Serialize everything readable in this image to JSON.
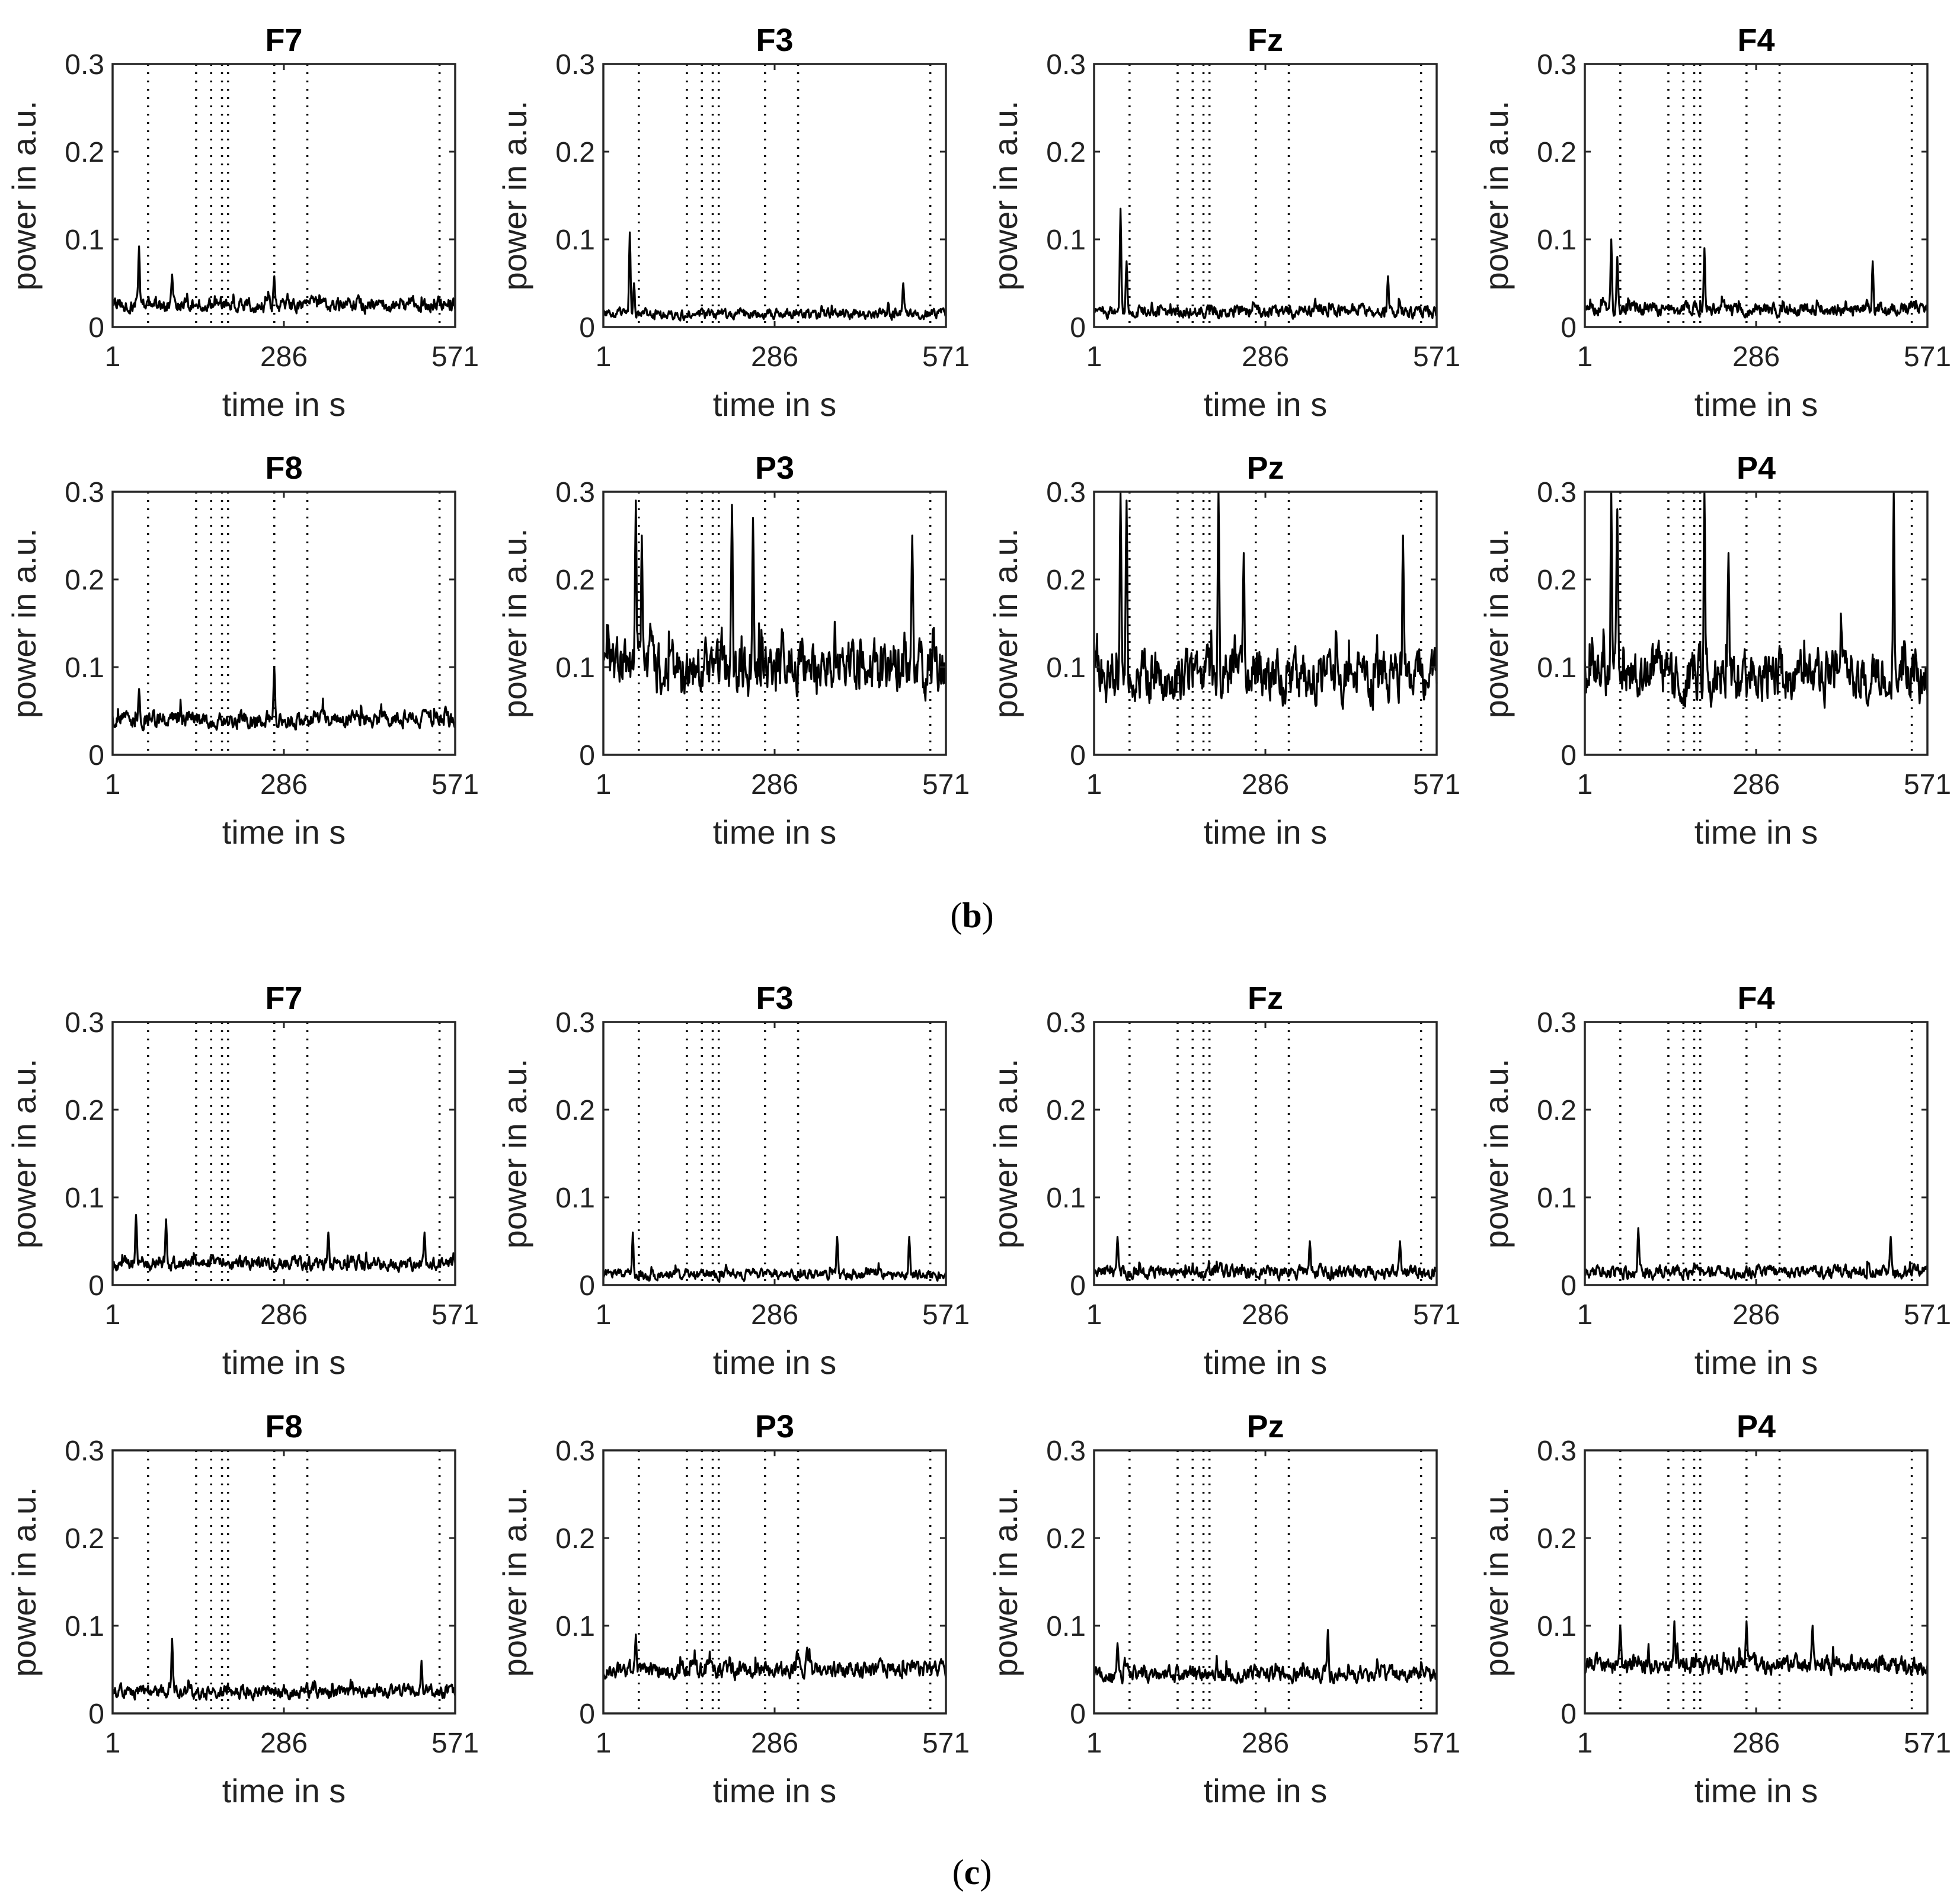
{
  "axis_defaults": {
    "xlabel": "time in s",
    "ylabel": "power in a.u.",
    "xticks": [
      1,
      286,
      571
    ],
    "yticks": [
      "0",
      "0.1",
      "0.2",
      "0.3"
    ],
    "xlim": [
      1,
      571
    ],
    "ylim": [
      0,
      0.3
    ]
  },
  "markers": [
    60,
    140,
    165,
    183,
    193,
    270,
    325,
    545
  ],
  "panels": [
    {
      "letter": "b",
      "caption_open": "(",
      "caption_close": ")",
      "channels": [
        {
          "name": "F7",
          "base": 0.025,
          "noise": 0.014,
          "peaks": [
            [
              45,
              0.092
            ],
            [
              100,
              0.06
            ],
            [
              270,
              0.058
            ]
          ]
        },
        {
          "name": "F3",
          "base": 0.015,
          "noise": 0.01,
          "peaks": [
            [
              45,
              0.108
            ],
            [
              52,
              0.05
            ],
            [
              500,
              0.05
            ]
          ]
        },
        {
          "name": "Fz",
          "base": 0.018,
          "noise": 0.012,
          "peaks": [
            [
              45,
              0.135
            ],
            [
              55,
              0.075
            ],
            [
              490,
              0.058
            ]
          ]
        },
        {
          "name": "F4",
          "base": 0.02,
          "noise": 0.013,
          "peaks": [
            [
              45,
              0.1
            ],
            [
              55,
              0.08
            ],
            [
              200,
              0.09
            ],
            [
              480,
              0.075
            ]
          ]
        },
        {
          "name": "F8",
          "base": 0.04,
          "noise": 0.016,
          "peaks": [
            [
              45,
              0.075
            ],
            [
              270,
              0.1
            ],
            [
              555,
              0.055
            ]
          ]
        },
        {
          "name": "P3",
          "base": 0.1,
          "noise": 0.05,
          "peaks": [
            [
              55,
              0.29
            ],
            [
              65,
              0.25
            ],
            [
              215,
              0.285
            ],
            [
              250,
              0.27
            ],
            [
              515,
              0.25
            ]
          ]
        },
        {
          "name": "Pz",
          "base": 0.09,
          "noise": 0.05,
          "peaks": [
            [
              45,
              0.3
            ],
            [
              55,
              0.29
            ],
            [
              208,
              0.3
            ],
            [
              250,
              0.23
            ],
            [
              515,
              0.25
            ]
          ]
        },
        {
          "name": "P4",
          "base": 0.09,
          "noise": 0.05,
          "peaks": [
            [
              45,
              0.3
            ],
            [
              55,
              0.28
            ],
            [
              200,
              0.3
            ],
            [
              240,
              0.23
            ],
            [
              515,
              0.3
            ]
          ]
        }
      ]
    },
    {
      "letter": "c",
      "caption_open": "(",
      "caption_close": ")",
      "channels": [
        {
          "name": "F7",
          "base": 0.025,
          "noise": 0.013,
          "peaks": [
            [
              40,
              0.08
            ],
            [
              90,
              0.075
            ],
            [
              360,
              0.06
            ],
            [
              520,
              0.06
            ]
          ]
        },
        {
          "name": "F3",
          "base": 0.012,
          "noise": 0.01,
          "peaks": [
            [
              50,
              0.06
            ],
            [
              390,
              0.055
            ],
            [
              510,
              0.055
            ]
          ]
        },
        {
          "name": "Fz",
          "base": 0.015,
          "noise": 0.012,
          "peaks": [
            [
              40,
              0.055
            ],
            [
              360,
              0.05
            ],
            [
              510,
              0.05
            ]
          ]
        },
        {
          "name": "F4",
          "base": 0.015,
          "noise": 0.012,
          "peaks": [
            [
              90,
              0.065
            ],
            [
              510,
              0.055
            ]
          ]
        },
        {
          "name": "F8",
          "base": 0.025,
          "noise": 0.013,
          "peaks": [
            [
              100,
              0.085
            ],
            [
              515,
              0.06
            ]
          ]
        },
        {
          "name": "P3",
          "base": 0.05,
          "noise": 0.016,
          "peaks": [
            [
              55,
              0.09
            ],
            [
              340,
              0.075
            ]
          ]
        },
        {
          "name": "Pz",
          "base": 0.045,
          "noise": 0.015,
          "peaks": [
            [
              40,
              0.08
            ],
            [
              390,
              0.095
            ]
          ]
        },
        {
          "name": "P4",
          "base": 0.055,
          "noise": 0.017,
          "peaks": [
            [
              60,
              0.1
            ],
            [
              150,
              0.105
            ],
            [
              270,
              0.105
            ],
            [
              380,
              0.1
            ]
          ]
        }
      ]
    }
  ],
  "chart_data": {
    "type": "line",
    "description_note": "",
    "xlabel": "time in s",
    "ylabel": "power in a.u.",
    "xlim": [
      1,
      571
    ],
    "ylim": [
      0,
      0.3
    ],
    "vertical_dotted_lines_x": [
      60,
      140,
      165,
      183,
      193,
      270,
      325,
      545
    ]
  }
}
